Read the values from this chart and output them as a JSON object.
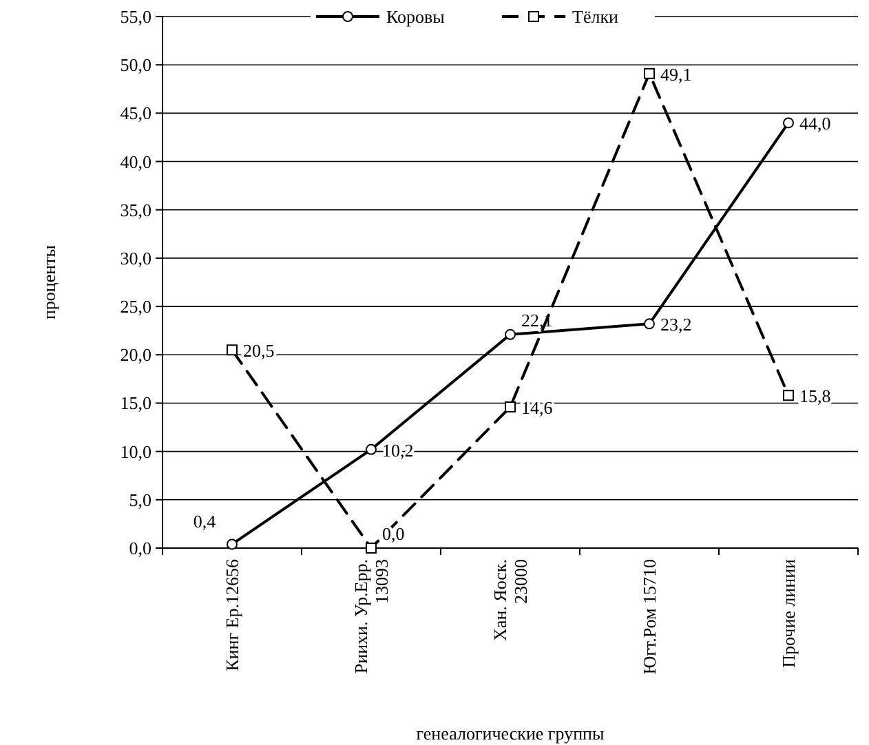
{
  "chart_data": {
    "type": "line",
    "xlabel": "генеалогические группы",
    "ylabel": "проценты",
    "categories": [
      "Кинг Ер.12656",
      "Риихи. Ур.Ерр.\n13093",
      "Хан. Яоск.\n23000",
      "Югт.Ром 15710",
      "Прочие линии"
    ],
    "ylim": [
      0,
      55
    ],
    "yticks": [
      {
        "value": 0,
        "label": "0,0"
      },
      {
        "value": 5,
        "label": "5,0"
      },
      {
        "value": 10,
        "label": "10,0"
      },
      {
        "value": 15,
        "label": "15,0"
      },
      {
        "value": 20,
        "label": "20,0"
      },
      {
        "value": 25,
        "label": "25,0"
      },
      {
        "value": 30,
        "label": "30,0"
      },
      {
        "value": 35,
        "label": "35,0"
      },
      {
        "value": 40,
        "label": "40,0"
      },
      {
        "value": 45,
        "label": "45,0"
      },
      {
        "value": 50,
        "label": "50,0"
      },
      {
        "value": 55,
        "label": "55,0"
      }
    ],
    "grid": "y",
    "legend": "top",
    "series": [
      {
        "name": "Коровы",
        "color": "#000000",
        "marker": "circle",
        "line_style": "solid",
        "values": [
          0.4,
          10.2,
          22.1,
          23.2,
          44.0
        ],
        "value_labels": [
          "0,4",
          "10,2",
          "22,1",
          "23,2",
          "44,0"
        ]
      },
      {
        "name": "Тёлки",
        "color": "#000000",
        "marker": "square",
        "line_style": "dashed",
        "values": [
          20.5,
          0.0,
          14.6,
          49.1,
          15.8
        ],
        "value_labels": [
          "20,5",
          "0,0",
          "14,6",
          "49,1",
          "15,8"
        ]
      }
    ]
  }
}
